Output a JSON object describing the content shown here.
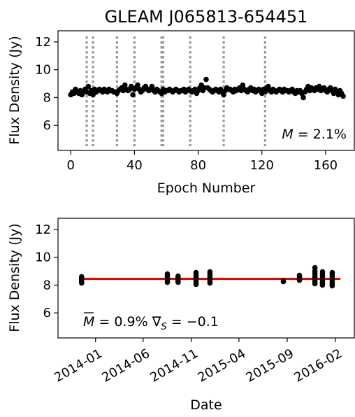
{
  "chart_data": [
    {
      "type": "scatter",
      "title": "GLEAM J065813-654451",
      "xlabel": "Epoch Number",
      "ylabel": "Flux Density (Jy)",
      "xlim": [
        -8,
        178
      ],
      "ylim": [
        4.2,
        12.8
      ],
      "xticks": [
        0,
        40,
        80,
        120,
        160
      ],
      "xtick_labels": [
        "0",
        "40",
        "80",
        "120",
        "160"
      ],
      "yticks": [
        6,
        8,
        10,
        12
      ],
      "ytick_labels": [
        "6",
        "8",
        "10",
        "12"
      ],
      "annotation": "M = 2.1%",
      "annotation_parts": {
        "symbol": "M",
        "rest": " = 2.1%"
      },
      "marker_color": "#000000",
      "vline_color": "#999999",
      "vlines": [
        10,
        14,
        29,
        40,
        57,
        58,
        75,
        96,
        122
      ],
      "points": [
        [
          0,
          8.2
        ],
        [
          1,
          8.4
        ],
        [
          2,
          8.3
        ],
        [
          3,
          8.6
        ],
        [
          4,
          8.4
        ],
        [
          5,
          8.3
        ],
        [
          6,
          8.5
        ],
        [
          7,
          8.2
        ],
        [
          8,
          8.4
        ],
        [
          9,
          8.6
        ],
        [
          10,
          8.4
        ],
        [
          11,
          8.8
        ],
        [
          12,
          8.3
        ],
        [
          13,
          8.5
        ],
        [
          14,
          8.2
        ],
        [
          15,
          8.6
        ],
        [
          16,
          8.4
        ],
        [
          17,
          8.5
        ],
        [
          18,
          8.6
        ],
        [
          19,
          8.5
        ],
        [
          20,
          8.4
        ],
        [
          21,
          8.6
        ],
        [
          22,
          8.5
        ],
        [
          23,
          8.4
        ],
        [
          24,
          8.6
        ],
        [
          25,
          8.5
        ],
        [
          26,
          8.5
        ],
        [
          27,
          8.4
        ],
        [
          28,
          8.4
        ],
        [
          29,
          8.3
        ],
        [
          30,
          8.5
        ],
        [
          31,
          8.6
        ],
        [
          32,
          8.7
        ],
        [
          33,
          8.5
        ],
        [
          34,
          8.9
        ],
        [
          35,
          8.6
        ],
        [
          36,
          8.5
        ],
        [
          37,
          8.6
        ],
        [
          38,
          8.8
        ],
        [
          39,
          8.2
        ],
        [
          40,
          8.6
        ],
        [
          41,
          8.7
        ],
        [
          42,
          8.9
        ],
        [
          43,
          8.6
        ],
        [
          44,
          8.4
        ],
        [
          45,
          8.5
        ],
        [
          46,
          8.7
        ],
        [
          47,
          8.8
        ],
        [
          48,
          8.6
        ],
        [
          49,
          8.5
        ],
        [
          50,
          8.6
        ],
        [
          51,
          8.8
        ],
        [
          52,
          8.5
        ],
        [
          53,
          8.4
        ],
        [
          54,
          8.6
        ],
        [
          55,
          8.5
        ],
        [
          56,
          8.4
        ],
        [
          57,
          8.3
        ],
        [
          58,
          8.6
        ],
        [
          59,
          8.4
        ],
        [
          60,
          8.5
        ],
        [
          61,
          8.5
        ],
        [
          62,
          8.6
        ],
        [
          63,
          8.5
        ],
        [
          64,
          8.4
        ],
        [
          65,
          8.5
        ],
        [
          66,
          8.6
        ],
        [
          67,
          8.5
        ],
        [
          68,
          8.4
        ],
        [
          69,
          8.5
        ],
        [
          70,
          8.5
        ],
        [
          71,
          8.6
        ],
        [
          72,
          8.4
        ],
        [
          73,
          8.5
        ],
        [
          74,
          8.6
        ],
        [
          75,
          8.5
        ],
        [
          76,
          8.4
        ],
        [
          77,
          8.5
        ],
        [
          78,
          8.6
        ],
        [
          79,
          8.3
        ],
        [
          80,
          8.5
        ],
        [
          81,
          8.7
        ],
        [
          82,
          8.9
        ],
        [
          83,
          8.5
        ],
        [
          84,
          8.7
        ],
        [
          85,
          9.3
        ],
        [
          86,
          8.7
        ],
        [
          87,
          8.6
        ],
        [
          88,
          8.5
        ],
        [
          89,
          8.4
        ],
        [
          90,
          8.5
        ],
        [
          91,
          8.6
        ],
        [
          92,
          8.5
        ],
        [
          93,
          8.4
        ],
        [
          94,
          8.6
        ],
        [
          95,
          8.4
        ],
        [
          96,
          8.2
        ],
        [
          97,
          8.5
        ],
        [
          98,
          8.7
        ],
        [
          99,
          8.6
        ],
        [
          100,
          8.6
        ],
        [
          101,
          8.5
        ],
        [
          102,
          8.4
        ],
        [
          103,
          8.6
        ],
        [
          104,
          8.5
        ],
        [
          105,
          8.6
        ],
        [
          106,
          8.7
        ],
        [
          107,
          8.5
        ],
        [
          108,
          8.9
        ],
        [
          109,
          8.6
        ],
        [
          110,
          8.5
        ],
        [
          111,
          8.4
        ],
        [
          112,
          8.6
        ],
        [
          113,
          8.7
        ],
        [
          114,
          8.5
        ],
        [
          115,
          8.6
        ],
        [
          116,
          8.4
        ],
        [
          117,
          8.5
        ],
        [
          118,
          8.6
        ],
        [
          119,
          8.5
        ],
        [
          120,
          8.3
        ],
        [
          121,
          8.6
        ],
        [
          122,
          8.4
        ],
        [
          123,
          8.7
        ],
        [
          124,
          8.8
        ],
        [
          125,
          8.5
        ],
        [
          126,
          8.4
        ],
        [
          127,
          8.6
        ],
        [
          128,
          8.5
        ],
        [
          129,
          8.4
        ],
        [
          130,
          8.5
        ],
        [
          131,
          8.6
        ],
        [
          132,
          8.5
        ],
        [
          133,
          8.4
        ],
        [
          134,
          8.6
        ],
        [
          135,
          8.5
        ],
        [
          136,
          8.5
        ],
        [
          137,
          8.4
        ],
        [
          138,
          8.5
        ],
        [
          139,
          8.6
        ],
        [
          140,
          8.4
        ],
        [
          141,
          8.3
        ],
        [
          142,
          8.5
        ],
        [
          143,
          8.4
        ],
        [
          144,
          8.5
        ],
        [
          145,
          8.3
        ],
        [
          146,
          8.0
        ],
        [
          147,
          8.4
        ],
        [
          148,
          8.6
        ],
        [
          149,
          8.8
        ],
        [
          150,
          8.5
        ],
        [
          151,
          8.7
        ],
        [
          152,
          8.6
        ],
        [
          153,
          8.5
        ],
        [
          154,
          8.7
        ],
        [
          155,
          8.6
        ],
        [
          156,
          8.8
        ],
        [
          157,
          8.5
        ],
        [
          158,
          8.6
        ],
        [
          159,
          8.7
        ],
        [
          160,
          8.5
        ],
        [
          161,
          8.4
        ],
        [
          162,
          8.6
        ],
        [
          163,
          8.7
        ],
        [
          164,
          8.5
        ],
        [
          165,
          8.3
        ],
        [
          166,
          8.6
        ],
        [
          167,
          8.4
        ],
        [
          168,
          8.2
        ],
        [
          169,
          8.5
        ],
        [
          170,
          8.3
        ],
        [
          171,
          8.1
        ]
      ]
    },
    {
      "type": "scatter",
      "xlabel": "Date",
      "ylabel": "Flux Density (Jy)",
      "xlim": [
        "2013-09-04",
        "2016-04-01"
      ],
      "ylim": [
        4.2,
        12.8
      ],
      "xticks": [
        "2014-01-01",
        "2014-06-01",
        "2014-11-01",
        "2015-04-01",
        "2015-09-01",
        "2016-02-01"
      ],
      "xtick_labels": [
        "2014-01",
        "2014-06",
        "2014-11",
        "2015-04",
        "2015-09",
        "2016-02"
      ],
      "yticks": [
        6,
        8,
        10,
        12
      ],
      "ytick_labels": [
        "6",
        "8",
        "10",
        "12"
      ],
      "annotation": "M̄ = 0.9% ∇S = −0.1",
      "annotation_parts": {
        "mbar": "M",
        "mid": " = 0.9% ∇",
        "sub": "S",
        "tail": " = −0.1"
      },
      "marker_color": "#000000",
      "mean_line": {
        "value": 8.45,
        "color": "#ee0000",
        "x_start": "2013-11-15",
        "x_end": "2016-02-17"
      },
      "date_groups": [
        {
          "date": "2013-11-18",
          "values": [
            8.15,
            8.25,
            8.3,
            8.4,
            8.45,
            8.5,
            8.55,
            8.6
          ]
        },
        {
          "date": "2014-08-17",
          "values": [
            8.2,
            8.3,
            8.45,
            8.55,
            8.65,
            8.8
          ]
        },
        {
          "date": "2014-09-20",
          "values": [
            8.2,
            8.3,
            8.4,
            8.5,
            8.6,
            8.65
          ]
        },
        {
          "date": "2014-11-16",
          "values": [
            8.05,
            8.15,
            8.25,
            8.35,
            8.45,
            8.5,
            8.55,
            8.65,
            8.8,
            8.9
          ]
        },
        {
          "date": "2014-12-30",
          "values": [
            8.15,
            8.3,
            8.4,
            8.5,
            8.6,
            8.7,
            8.85,
            8.95
          ]
        },
        {
          "date": "2015-08-20",
          "values": [
            8.25,
            8.3
          ]
        },
        {
          "date": "2015-10-10",
          "values": [
            8.35,
            8.45,
            8.6,
            8.7
          ]
        },
        {
          "date": "2015-11-28",
          "values": [
            8.1,
            8.2,
            8.35,
            8.45,
            8.55,
            8.7,
            8.85,
            9.0,
            9.25
          ]
        },
        {
          "date": "2015-12-22",
          "values": [
            8.0,
            8.1,
            8.2,
            8.35,
            8.5,
            8.65,
            8.8,
            8.95
          ]
        },
        {
          "date": "2016-01-22",
          "values": [
            7.95,
            8.05,
            8.15,
            8.3,
            8.45,
            8.6,
            8.75,
            8.9
          ]
        }
      ]
    }
  ]
}
